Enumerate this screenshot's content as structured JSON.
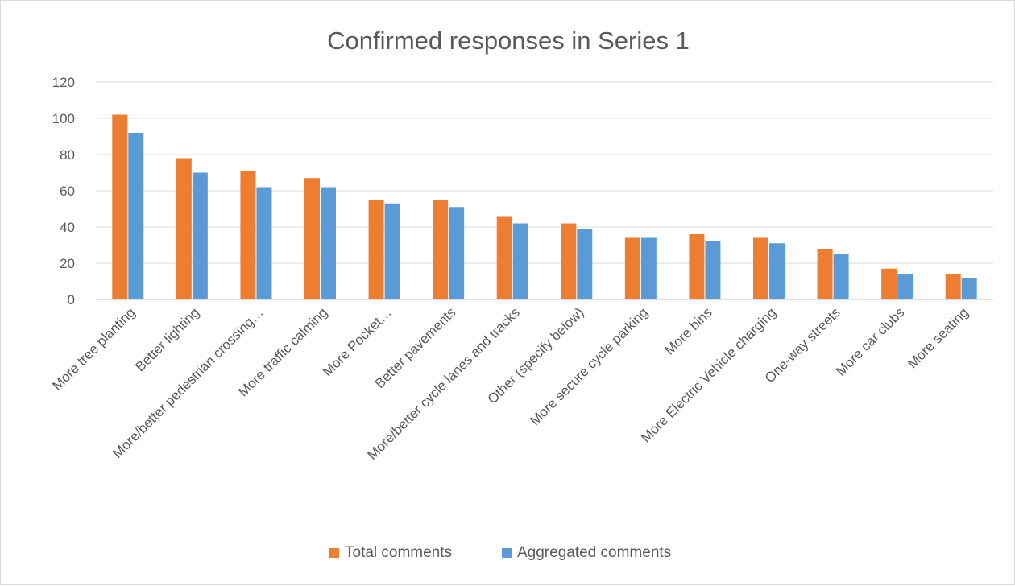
{
  "chart_data": {
    "type": "bar",
    "title": "Confirmed responses in Series 1",
    "xlabel": "",
    "ylabel": "",
    "ylim": [
      0,
      120
    ],
    "yticks": [
      0,
      20,
      40,
      60,
      80,
      100,
      120
    ],
    "grid": true,
    "legend_position": "bottom",
    "categories": [
      "More tree planting",
      "Better lighting",
      "More/better pedestrian crossing…",
      "More traffic calming",
      "More Pocket…",
      "Better pavements",
      "More/better cycle lanes and tracks",
      "Other (specify below)",
      "More secure cycle parking",
      "More bins",
      "More Electric Vehicle charging",
      "One-way streets",
      "More car clubs",
      "More seating"
    ],
    "series": [
      {
        "name": "Total comments",
        "color": "#ed7d31",
        "values": [
          102,
          78,
          71,
          67,
          55,
          55,
          46,
          42,
          34,
          36,
          34,
          28,
          17,
          14
        ]
      },
      {
        "name": "Aggregated comments",
        "color": "#5b9bd5",
        "values": [
          92,
          70,
          62,
          62,
          53,
          51,
          42,
          39,
          34,
          32,
          31,
          25,
          14,
          12
        ]
      }
    ]
  }
}
